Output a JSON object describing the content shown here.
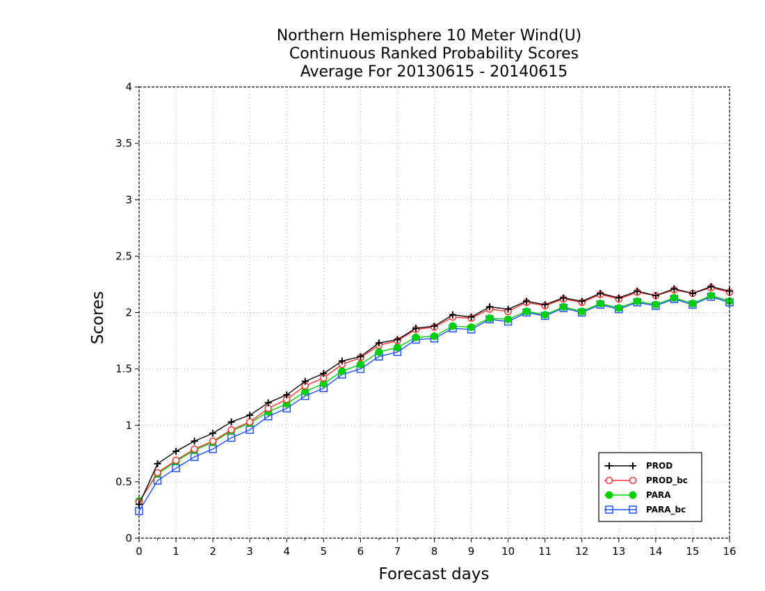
{
  "chart_data": {
    "type": "line",
    "title": [
      "Northern Hemisphere 10 Meter Wind(U)",
      "Continuous Ranked Probability Scores",
      "Average For 20130615 - 20140615"
    ],
    "xlabel": "Forecast days",
    "ylabel": "Scores",
    "xlim": [
      0,
      16
    ],
    "ylim": [
      0,
      4
    ],
    "xticks": [
      "0",
      "1",
      "2",
      "3",
      "4",
      "5",
      "6",
      "7",
      "8",
      "9",
      "10",
      "11",
      "12",
      "13",
      "14",
      "15",
      "16"
    ],
    "yticks": [
      "0",
      "0.5",
      "1",
      "1.5",
      "2",
      "2.5",
      "3",
      "3.5",
      "4"
    ],
    "grid": true,
    "legend_position": "bottom-right",
    "x": [
      0,
      0.5,
      1,
      1.5,
      2,
      2.5,
      3,
      3.5,
      4,
      4.5,
      5,
      5.5,
      6,
      6.5,
      7,
      7.5,
      8,
      8.5,
      9,
      9.5,
      10,
      10.5,
      11,
      11.5,
      12,
      12.5,
      13,
      13.5,
      14,
      14.5,
      15,
      15.5,
      16
    ],
    "series": [
      {
        "name": "PROD",
        "color": "#000000",
        "marker": "plus",
        "values": [
          0.3,
          0.66,
          0.77,
          0.86,
          0.93,
          1.03,
          1.09,
          1.2,
          1.27,
          1.39,
          1.46,
          1.57,
          1.61,
          1.73,
          1.76,
          1.86,
          1.88,
          1.98,
          1.96,
          2.05,
          2.03,
          2.1,
          2.07,
          2.13,
          2.1,
          2.17,
          2.13,
          2.19,
          2.15,
          2.21,
          2.17,
          2.23,
          2.19
        ]
      },
      {
        "name": "PROD_bc",
        "color": "#ff3030",
        "marker": "open-circle",
        "values": [
          0.32,
          0.58,
          0.69,
          0.79,
          0.86,
          0.96,
          1.03,
          1.15,
          1.23,
          1.35,
          1.42,
          1.54,
          1.6,
          1.71,
          1.75,
          1.85,
          1.87,
          1.96,
          1.95,
          2.03,
          2.01,
          2.09,
          2.06,
          2.12,
          2.09,
          2.16,
          2.12,
          2.18,
          2.15,
          2.2,
          2.17,
          2.22,
          2.18
        ]
      },
      {
        "name": "PARA",
        "color": "#00d000",
        "marker": "filled-circle",
        "values": [
          0.33,
          0.57,
          0.68,
          0.78,
          0.85,
          0.95,
          1.02,
          1.12,
          1.19,
          1.3,
          1.37,
          1.48,
          1.54,
          1.65,
          1.69,
          1.78,
          1.79,
          1.88,
          1.87,
          1.95,
          1.94,
          2.01,
          1.98,
          2.05,
          2.01,
          2.08,
          2.04,
          2.1,
          2.07,
          2.13,
          2.08,
          2.15,
          2.1
        ]
      },
      {
        "name": "PARA_bc",
        "color": "#1e50ff",
        "marker": "open-square",
        "values": [
          0.24,
          0.51,
          0.62,
          0.72,
          0.79,
          0.89,
          0.96,
          1.08,
          1.15,
          1.26,
          1.33,
          1.45,
          1.5,
          1.61,
          1.65,
          1.76,
          1.77,
          1.86,
          1.85,
          1.94,
          1.92,
          2.0,
          1.97,
          2.04,
          2.0,
          2.07,
          2.03,
          2.09,
          2.06,
          2.12,
          2.07,
          2.14,
          2.09
        ]
      }
    ]
  }
}
